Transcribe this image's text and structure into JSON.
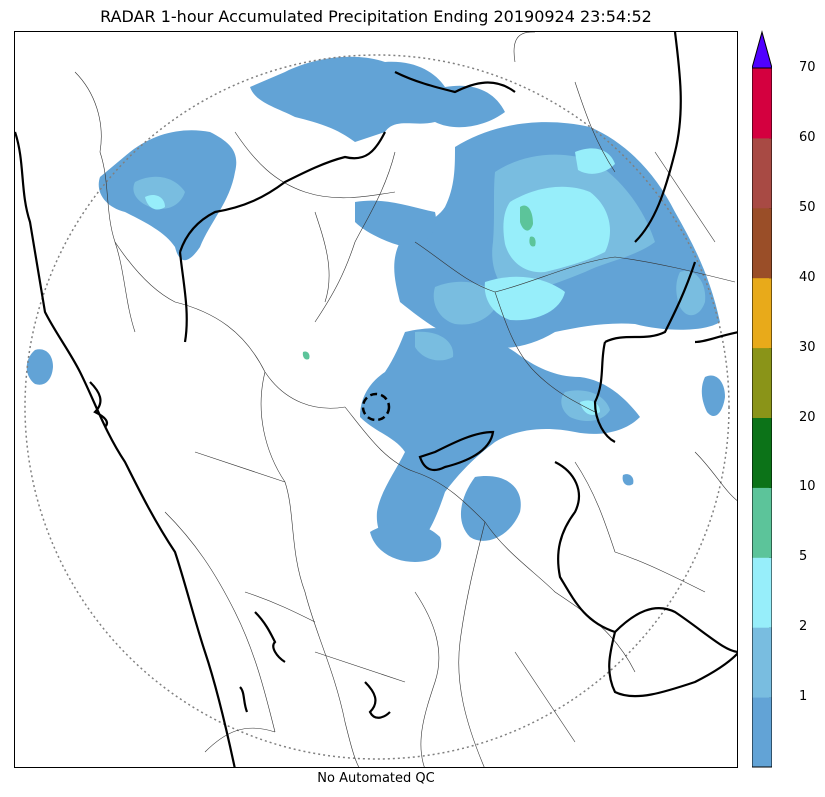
{
  "title": "RADAR 1-hour Accumulated Precipitation Ending 20190924 23:54:52",
  "caption": "No Automated QC",
  "colorbar": {
    "levels": [
      {
        "range": "0-1",
        "color": "#62a3d6"
      },
      {
        "range": "1-2",
        "color": "#79bde0"
      },
      {
        "range": "2-5",
        "color": "#97eefa"
      },
      {
        "range": "5-10",
        "color": "#5cc49a"
      },
      {
        "range": "10-20",
        "color": "#0c7318"
      },
      {
        "range": "20-30",
        "color": "#8a9418"
      },
      {
        "range": "30-40",
        "color": "#e8aa1a"
      },
      {
        "range": "40-50",
        "color": "#9a4e28"
      },
      {
        "range": "50-60",
        "color": "#a84a44"
      },
      {
        "range": "60-70",
        "color": "#d4003f"
      }
    ],
    "tick_labels": [
      "1",
      "2",
      "5",
      "10",
      "20",
      "30",
      "40",
      "50",
      "60",
      "70"
    ],
    "overflow_color": "#5000ff"
  },
  "map": {
    "range_ring_color": "#808080",
    "coastline_color": "#000000",
    "boundary_color": "#333333"
  }
}
